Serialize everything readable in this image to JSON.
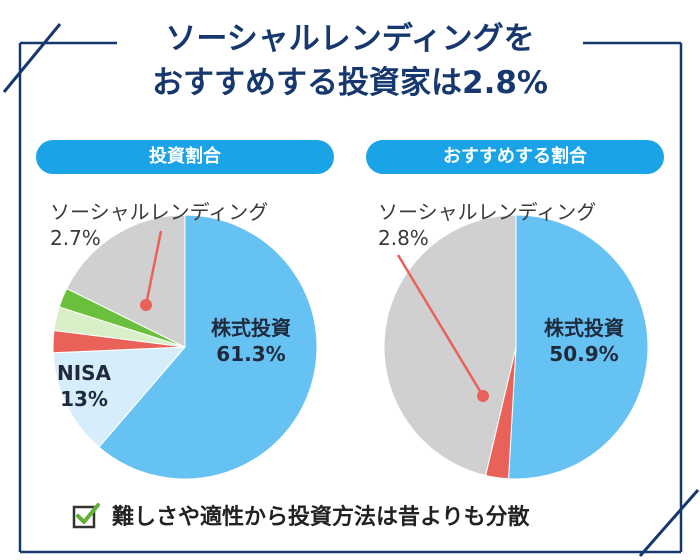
{
  "header": {
    "title_line1": "ソーシャルレンディングを",
    "title_line2": "おすすめする投資家は2.8%"
  },
  "colors": {
    "navy": "#16386e",
    "pill": "#1aa3e6",
    "stock": "#66c2f2",
    "nisa": "#d6eefb",
    "social": "#e8625a",
    "green": "#6abf3c",
    "lightgreen": "#d8efc8",
    "other": "#d0d0d0"
  },
  "chart_data": [
    {
      "type": "pie",
      "title": "投資割合",
      "slices": [
        {
          "label": "株式投資",
          "value": 61.3,
          "value_label": "61.3%",
          "color": "#66c2f2"
        },
        {
          "label": "NISA",
          "value": 13.0,
          "value_label": "13%",
          "color": "#d6eefb"
        },
        {
          "label": "",
          "value": 2.7,
          "value_label": "",
          "color": "#e8625a"
        },
        {
          "label": "",
          "value": 2.9,
          "value_label": "",
          "color": "#d8efc8"
        },
        {
          "label": "",
          "value": 2.4,
          "value_label": "",
          "color": "#6abf3c"
        },
        {
          "label": "",
          "value": 17.7,
          "value_label": "",
          "color": "#d0d0d0"
        }
      ],
      "callout": {
        "label": "ソーシャルレンディング",
        "value_label": "2.7%"
      }
    },
    {
      "type": "pie",
      "title": "おすすめする割合",
      "slices": [
        {
          "label": "株式投資",
          "value": 50.9,
          "value_label": "50.9%",
          "color": "#66c2f2"
        },
        {
          "label": "",
          "value": 2.8,
          "value_label": "",
          "color": "#e8625a"
        },
        {
          "label": "",
          "value": 46.3,
          "value_label": "",
          "color": "#d0d0d0"
        }
      ],
      "callout": {
        "label": "ソーシャルレンディング",
        "value_label": "2.8%"
      }
    }
  ],
  "footer": {
    "icon": "checkbox-icon",
    "text": "難しさや適性から投資方法は昔よりも分散"
  }
}
